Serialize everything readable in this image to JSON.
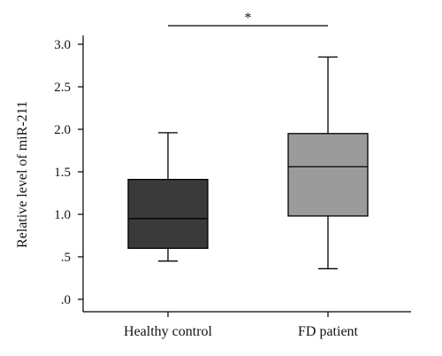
{
  "chart_data": {
    "type": "box",
    "ylabel": "Relative level of miR-211",
    "ylim": [
      0,
      3.0
    ],
    "yticks": [
      0,
      0.5,
      1.0,
      1.5,
      2.0,
      2.5,
      3.0
    ],
    "ytick_labels": [
      ".0",
      ".5",
      "1.0",
      "1.5",
      "2.0",
      "2.5",
      "3.0"
    ],
    "categories": [
      "Healthy control",
      "FD patient"
    ],
    "boxes": [
      {
        "category": "Healthy control",
        "min": 0.45,
        "q1": 0.6,
        "median": 0.95,
        "q3": 1.41,
        "max": 1.96,
        "color": "#3a3a3a"
      },
      {
        "category": "FD patient",
        "min": 0.36,
        "q1": 0.98,
        "median": 1.56,
        "q3": 1.95,
        "max": 2.85,
        "color": "#9b9b9b"
      }
    ],
    "significance": {
      "between": [
        "Healthy control",
        "FD patient"
      ],
      "label": "*"
    }
  }
}
